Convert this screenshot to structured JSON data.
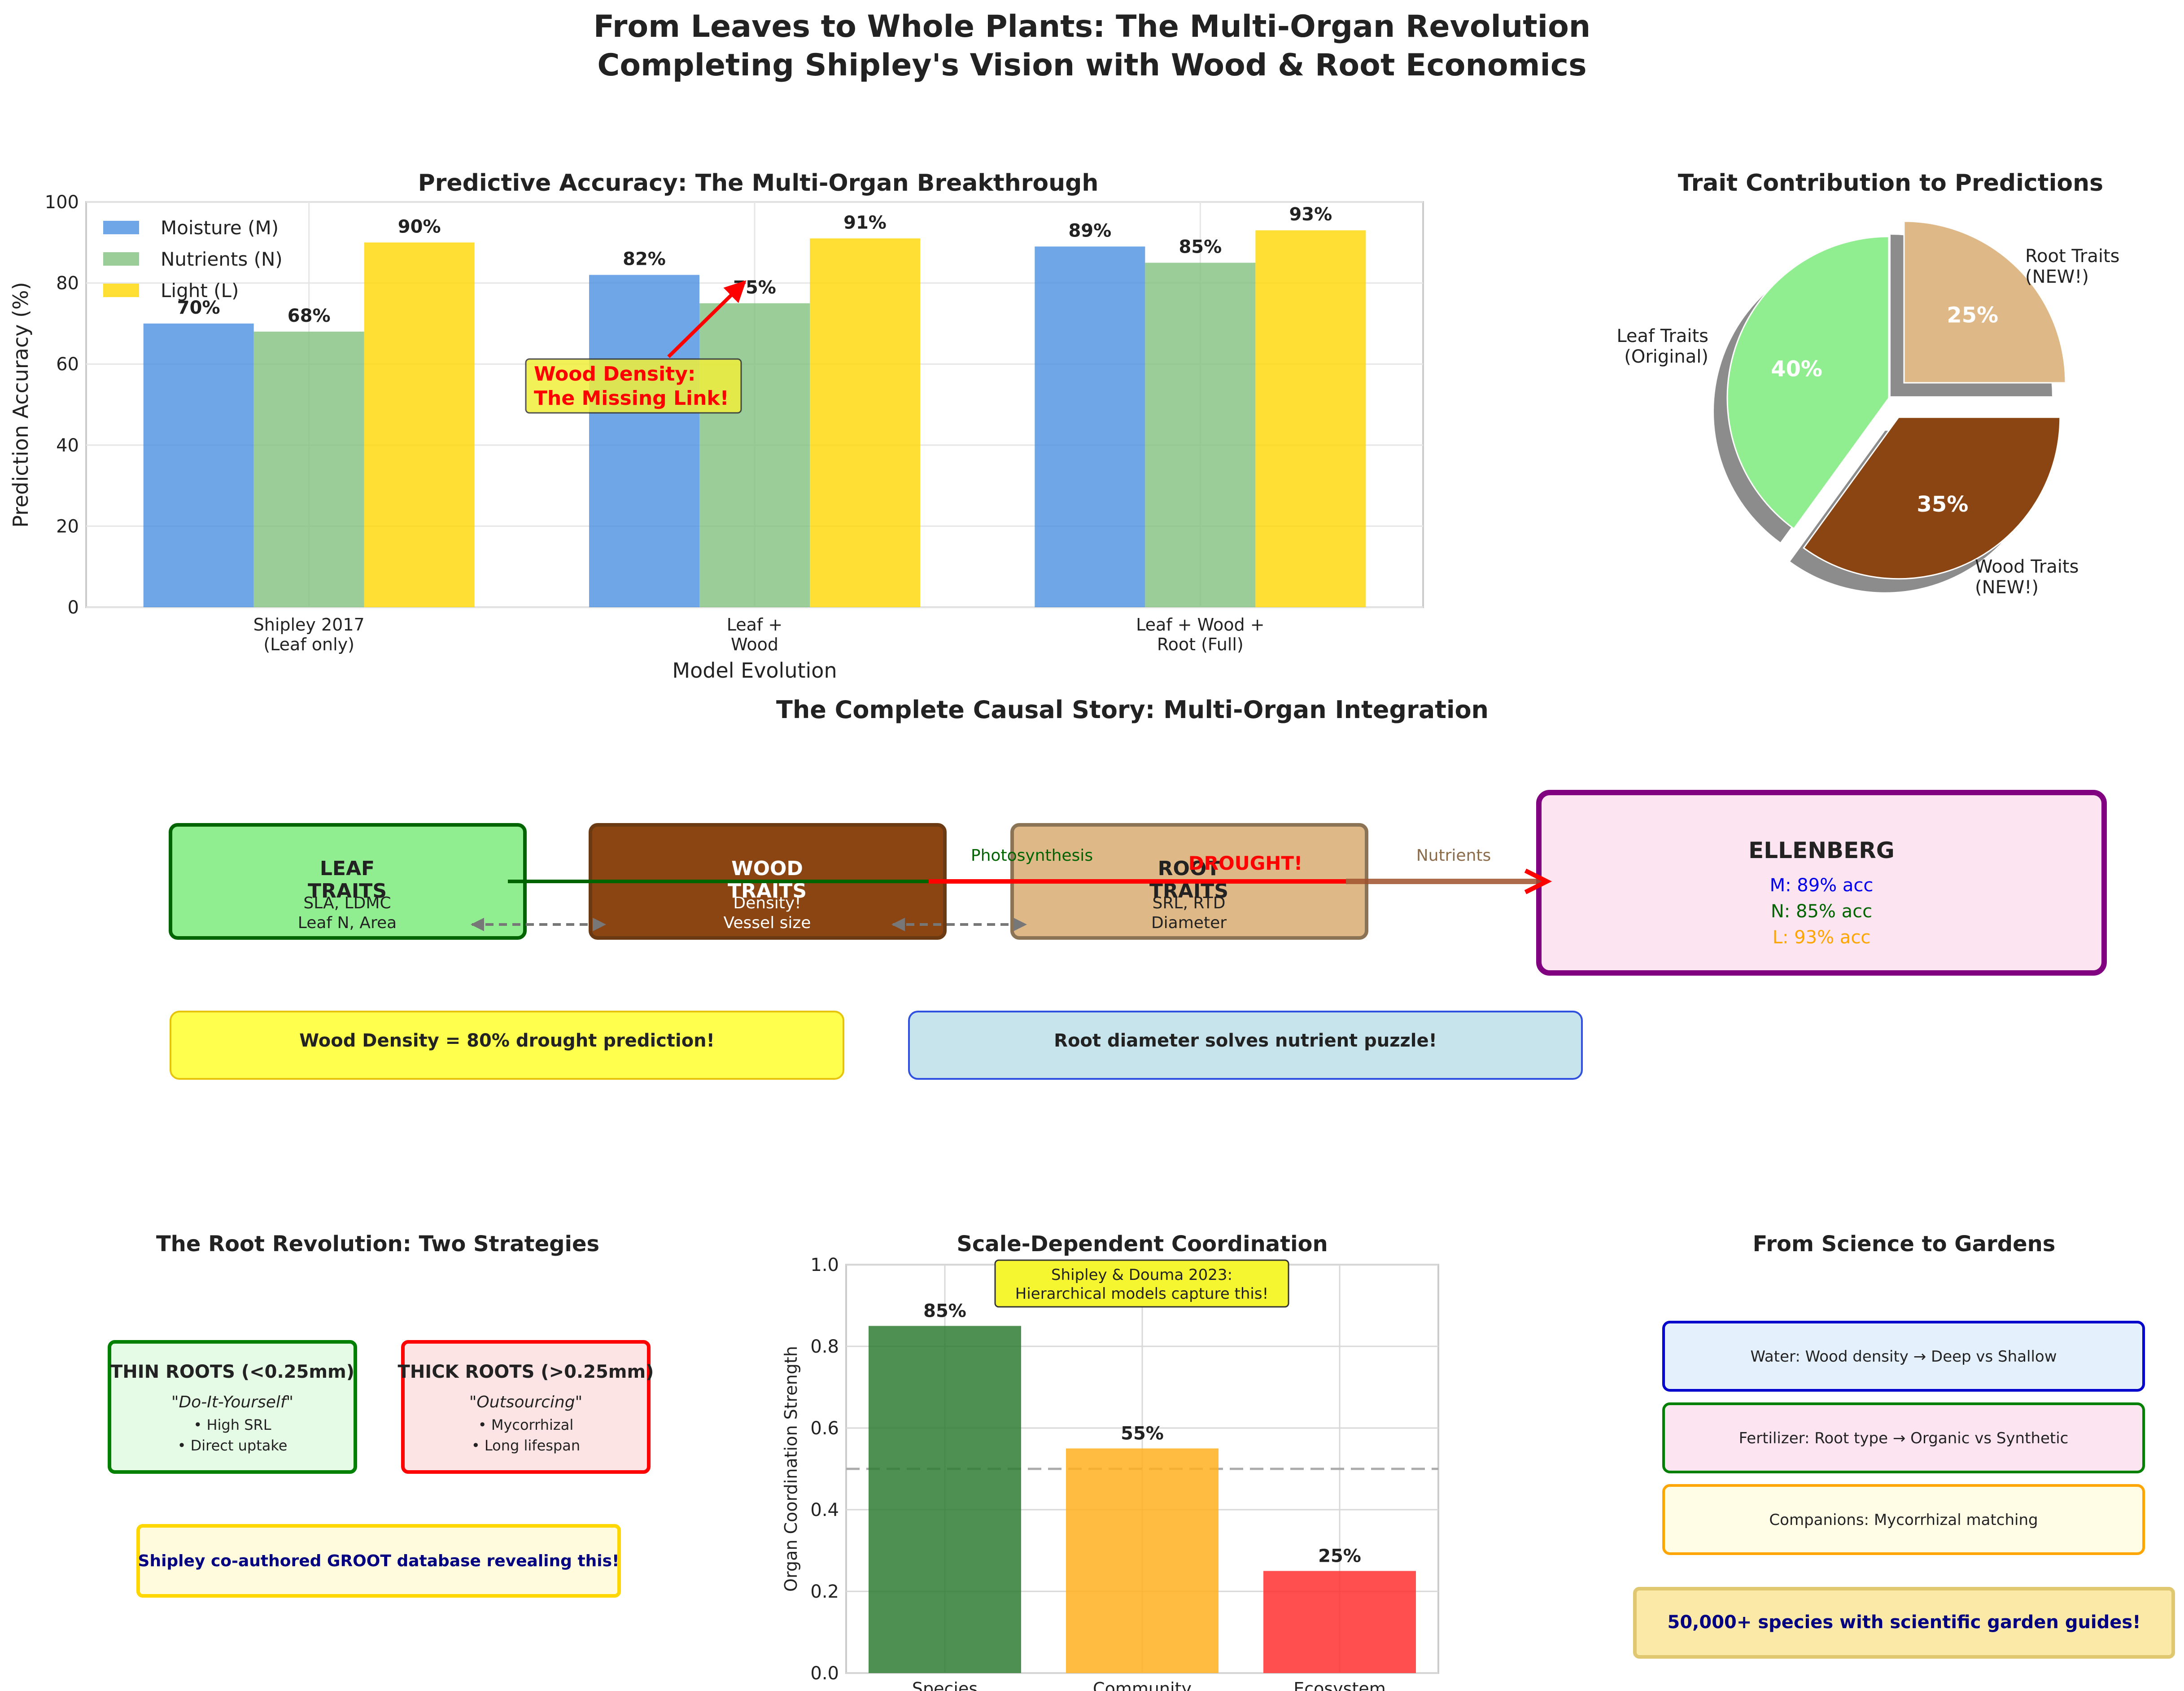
{
  "page": {
    "title_line1": "From Leaves to Whole Plants: The Multi-Organ Revolution",
    "title_line2": "Completing Shipley's Vision with Wood & Root Economics"
  },
  "chart_data": [
    {
      "id": "accuracy",
      "type": "bar",
      "title": "Predictive Accuracy: The Multi-Organ Breakthrough",
      "xlabel": "Model Evolution",
      "ylabel": "Prediction Accuracy (%)",
      "ylim": [
        0,
        100
      ],
      "yticks": [
        "0",
        "20",
        "40",
        "60",
        "80",
        "100"
      ],
      "grid": true,
      "legend_position": "top-left",
      "categories": [
        [
          "Shipley 2017",
          "(Leaf only)"
        ],
        [
          "Leaf +",
          "Wood"
        ],
        [
          "Leaf + Wood +",
          "Root (Full)"
        ]
      ],
      "series": [
        {
          "name": "Moisture (M)",
          "color": "#4a90e2",
          "values": [
            70,
            82,
            89
          ],
          "labels": [
            "70%",
            "82%",
            "89%"
          ]
        },
        {
          "name": "Nutrients (N)",
          "color": "#82c080",
          "values": [
            68,
            75,
            85
          ],
          "labels": [
            "68%",
            "75%",
            "85%"
          ]
        },
        {
          "name": "Light (L)",
          "color": "#ffd700",
          "values": [
            90,
            91,
            93
          ],
          "labels": [
            "90%",
            "91%",
            "93%"
          ]
        }
      ],
      "annotation": {
        "line1": "Wood Density:",
        "line2": "The Missing Link!",
        "color": "#ff0000"
      }
    },
    {
      "id": "contribution",
      "type": "pie",
      "title": "Trait Contribution to Predictions",
      "slices": [
        {
          "label1": "Leaf Traits",
          "label2": "(Original)",
          "value": 40,
          "pct": "40%",
          "color": "#90ee90"
        },
        {
          "label1": "Wood Traits",
          "label2": "(NEW!)",
          "value": 35,
          "pct": "35%",
          "color": "#8b4513"
        },
        {
          "label1": "Root Traits",
          "label2": "(NEW!)",
          "value": 25,
          "pct": "25%",
          "color": "#deb887"
        }
      ]
    },
    {
      "id": "coordination",
      "type": "bar",
      "title": "Scale-Dependent Coordination",
      "ylabel": "Organ Coordination Strength",
      "ylim": [
        0,
        1.0
      ],
      "yticks": [
        "0.0",
        "0.2",
        "0.4",
        "0.6",
        "0.8",
        "1.0"
      ],
      "grid": true,
      "reference_line": 0.5,
      "categories": [
        "Species",
        "Community",
        "Ecosystem"
      ],
      "values": [
        0.85,
        0.55,
        0.25
      ],
      "labels": [
        "85%",
        "55%",
        "25%"
      ],
      "colors": [
        "#2e7d32",
        "#ffb020",
        "#ff3030"
      ],
      "note_line1": "Shipley & Douma 2023:",
      "note_line2": "Hierarchical models capture this!"
    }
  ],
  "causal": {
    "title": "The Complete Causal Story: Multi-Organ Integration",
    "leaf": {
      "title1": "LEAF",
      "title2": "TRAITS",
      "sub1": "SLA, LDMC",
      "sub2": "Leaf N, Area",
      "fill": "#90ee90",
      "edge": "#006400"
    },
    "wood": {
      "title1": "WOOD",
      "title2": "TRAITS",
      "sub1": "Density!",
      "sub2": "Vessel size",
      "fill": "#8b4513",
      "edge": "#6b3a12"
    },
    "root": {
      "title1": "ROOT",
      "title2": "TRAITS",
      "sub1": "SRL, RTD",
      "sub2": "Diameter",
      "fill": "#deb887",
      "edge": "#8b7355"
    },
    "ellenberg": {
      "title": "ELLENBERG",
      "m": "M: 89% acc",
      "n": "N: 85% acc",
      "l": "L: 93% acc",
      "fill": "#fce4f0",
      "edge": "#800080"
    },
    "arrow_photo": "Photosynthesis",
    "arrow_drought": "DROUGHT!",
    "arrow_nutrients": "Nutrients",
    "note_wood": "Wood Density = 80% drought prediction!",
    "note_root": "Root diameter solves nutrient puzzle!"
  },
  "roots": {
    "title": "The Root Revolution: Two Strategies",
    "thin": {
      "title": "THIN ROOTS (<0.25mm)",
      "quote": "\"Do-It-Yourself\"",
      "b1": "• High SRL",
      "b2": "• Direct uptake"
    },
    "thick": {
      "title": "THICK ROOTS (>0.25mm)",
      "quote": "\"Outsourcing\"",
      "b1": "• Mycorrhizal",
      "b2": "• Long lifespan"
    },
    "note": "Shipley co-authored GROOT database revealing this!"
  },
  "gardens": {
    "title": "From Science to Gardens",
    "items": [
      "Water: Wood density → Deep vs Shallow",
      "Fertilizer: Root type → Organic vs Synthetic",
      "Companions: Mycorrhizal matching"
    ],
    "banner": "50,000+ species with scientific garden guides!"
  }
}
